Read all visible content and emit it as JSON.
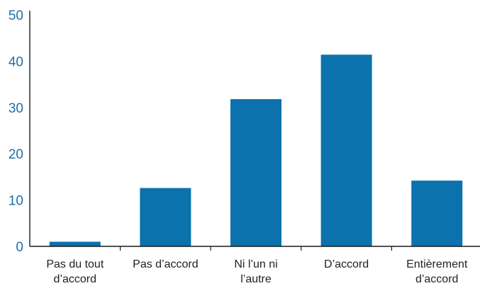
{
  "chart_data": {
    "type": "bar",
    "title": "",
    "xlabel": "",
    "ylabel": "",
    "categories": [
      [
        "Pas du tout",
        "d’accord"
      ],
      [
        "Pas d’accord"
      ],
      [
        "Ni l’un ni",
        "l’autre"
      ],
      [
        "D’accord"
      ],
      [
        "Entièrement",
        "d’accord"
      ]
    ],
    "values": [
      1,
      12.6,
      31.8,
      41.4,
      14.2
    ],
    "ylim": [
      0,
      50
    ],
    "yticks": [
      "0",
      "10",
      "20",
      "30",
      "40",
      "50"
    ],
    "grid": false,
    "colors": {
      "bar": "#0b72ad",
      "axis": "#1a1a1a",
      "ytick_text": "#1f6fa8",
      "xtick_text": "#222222"
    }
  }
}
